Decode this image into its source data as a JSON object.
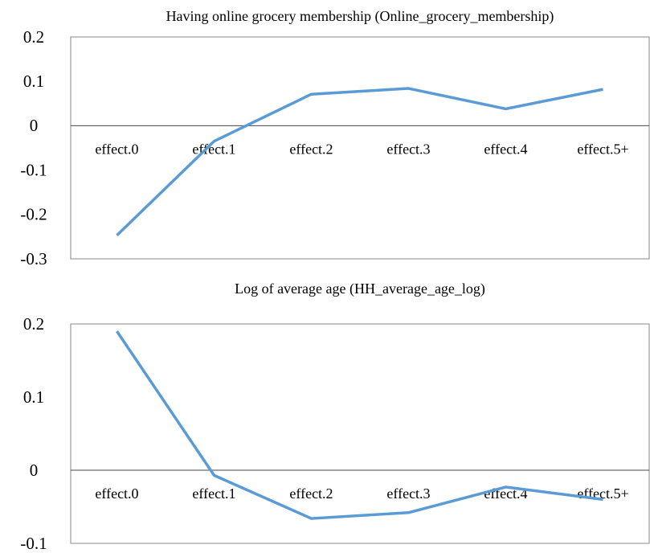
{
  "chart_data": [
    {
      "type": "line",
      "title": "Having online grocery membership (Online_grocery_membership)",
      "categories": [
        "effect.0",
        "effect.1",
        "effect.2",
        "effect.3",
        "effect.4",
        "effect.5+"
      ],
      "series": [
        {
          "color": "#5b9bd5",
          "values": [
            -0.247,
            -0.035,
            0.071,
            0.084,
            0.038,
            0.082
          ]
        }
      ],
      "ylim": [
        -0.3,
        0.2
      ],
      "yticks": [
        0.2,
        0.1,
        0,
        -0.1,
        -0.2,
        -0.3
      ]
    },
    {
      "type": "line",
      "title": "Log of average age (HH_average_age_log)",
      "categories": [
        "effect.0",
        "effect.1",
        "effect.2",
        "effect.3",
        "effect.4",
        "effect.5+"
      ],
      "series": [
        {
          "color": "#5b9bd5",
          "values": [
            0.19,
            -0.007,
            -0.066,
            -0.058,
            -0.023,
            -0.04
          ]
        }
      ],
      "ylim": [
        -0.1,
        0.2
      ],
      "yticks": [
        0.2,
        0.1,
        0,
        -0.1
      ]
    }
  ]
}
